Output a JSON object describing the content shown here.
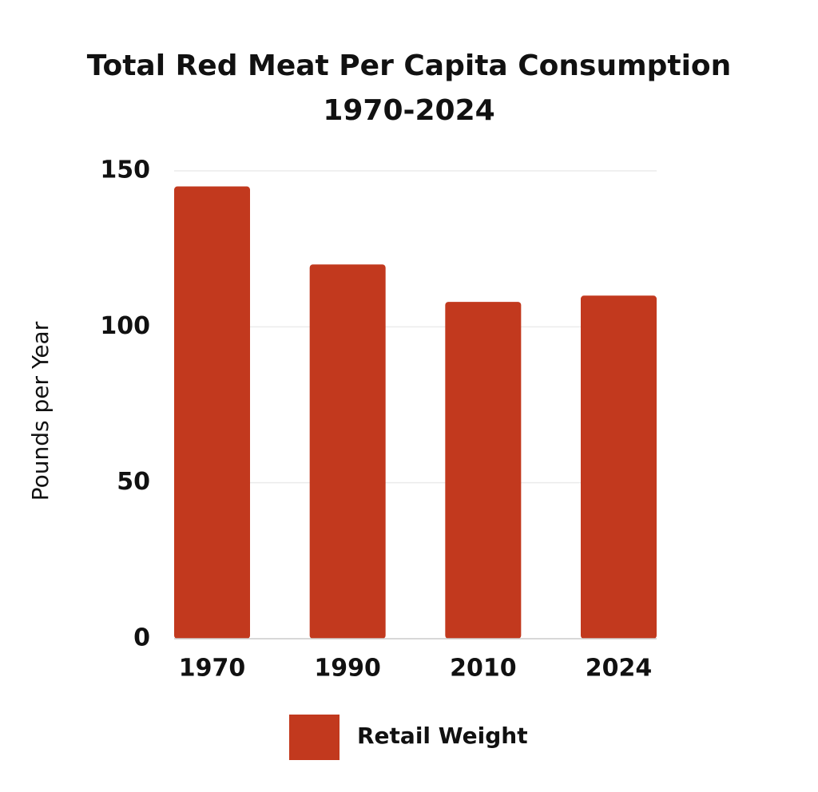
{
  "chart_data": {
    "type": "bar",
    "title": [
      "Total Red Meat Per Capita Consumption",
      "1970-2024"
    ],
    "y_label": "Pounds per Year",
    "categories": [
      "1970",
      "1990",
      "2010",
      "2024"
    ],
    "series": [
      {
        "name": "Retail Weight",
        "color": "#c2391e",
        "values": [
          145,
          120,
          108,
          110
        ]
      }
    ],
    "ylim": [
      0,
      150
    ],
    "yticks": [
      0,
      50,
      100,
      150
    ],
    "grid": true,
    "legend": "bottom"
  }
}
